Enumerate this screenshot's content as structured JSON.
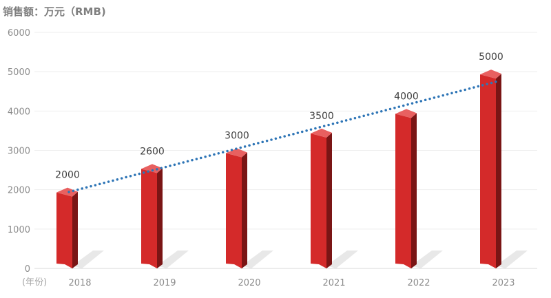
{
  "chart_data": {
    "type": "bar",
    "title": "销售额：万元（RMB)",
    "x_unit_label": "(年份)",
    "categories": [
      "2018",
      "2019",
      "2020",
      "2021",
      "2022",
      "2023"
    ],
    "series": [
      {
        "values": [
          2000,
          2600,
          3000,
          3500,
          4000,
          5000
        ]
      }
    ],
    "data_labels": [
      "2000",
      "2600",
      "3000",
      "3500",
      "4000",
      "5000"
    ],
    "y_ticks": [
      "0",
      "1000",
      "2000",
      "3000",
      "4000",
      "5000",
      "6000"
    ],
    "ylim": [
      0,
      6000
    ],
    "trendline": "linear, dotted",
    "grid": true,
    "colors": {
      "bar": "#d42a2a",
      "bar_side": "#7a1515",
      "bar_top": "#e86060",
      "trend": "#2e75b6",
      "grid": "#eeeeee"
    }
  }
}
